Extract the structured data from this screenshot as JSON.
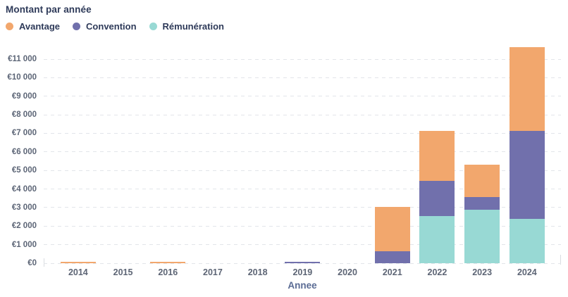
{
  "header": {
    "title": "Montant par année"
  },
  "legend": [
    {
      "label": "Avantage",
      "color": "#f2a76d"
    },
    {
      "label": "Convention",
      "color": "#7170ac"
    },
    {
      "label": "Rémunération",
      "color": "#98d9d4"
    }
  ],
  "chart_data": {
    "type": "bar",
    "stacked": true,
    "title": "Montant par année",
    "xlabel": "Annee",
    "ylabel": "",
    "categories": [
      "2014",
      "2015",
      "2016",
      "2017",
      "2018",
      "2019",
      "2020",
      "2021",
      "2022",
      "2023",
      "2024"
    ],
    "series": [
      {
        "name": "Avantage",
        "color": "#f2a76d",
        "values": [
          75,
          0,
          75,
          0,
          0,
          0,
          0,
          2390,
          2730,
          1770,
          4500
        ]
      },
      {
        "name": "Convention",
        "color": "#7170ac",
        "values": [
          0,
          0,
          0,
          0,
          0,
          75,
          0,
          630,
          1870,
          670,
          4750
        ]
      },
      {
        "name": "Rémunération",
        "color": "#98d9d4",
        "values": [
          0,
          0,
          0,
          0,
          0,
          0,
          0,
          0,
          2550,
          2880,
          2400
        ]
      }
    ],
    "stack_order_bottom_up": [
      "Rémunération",
      "Convention",
      "Avantage"
    ],
    "totals": [
      75,
      0,
      75,
      0,
      0,
      75,
      0,
      3020,
      7150,
      5320,
      11650
    ],
    "ylim": [
      0,
      11000
    ],
    "ytick_step": 1000,
    "ytick_labels": [
      "€0",
      "€1 000",
      "€2 000",
      "€3 000",
      "€4 000",
      "€5 000",
      "€6 000",
      "€7 000",
      "€8 000",
      "€9 000",
      "€10 000",
      "€11 000"
    ],
    "grid": "horizontal-dashed",
    "gridline_color": "#e2e5ea",
    "legend_position": "top-left",
    "text_colors": {
      "title": "#2e3a59",
      "ticks": "#5c6576",
      "xaxis_title": "#5a6b94"
    }
  }
}
